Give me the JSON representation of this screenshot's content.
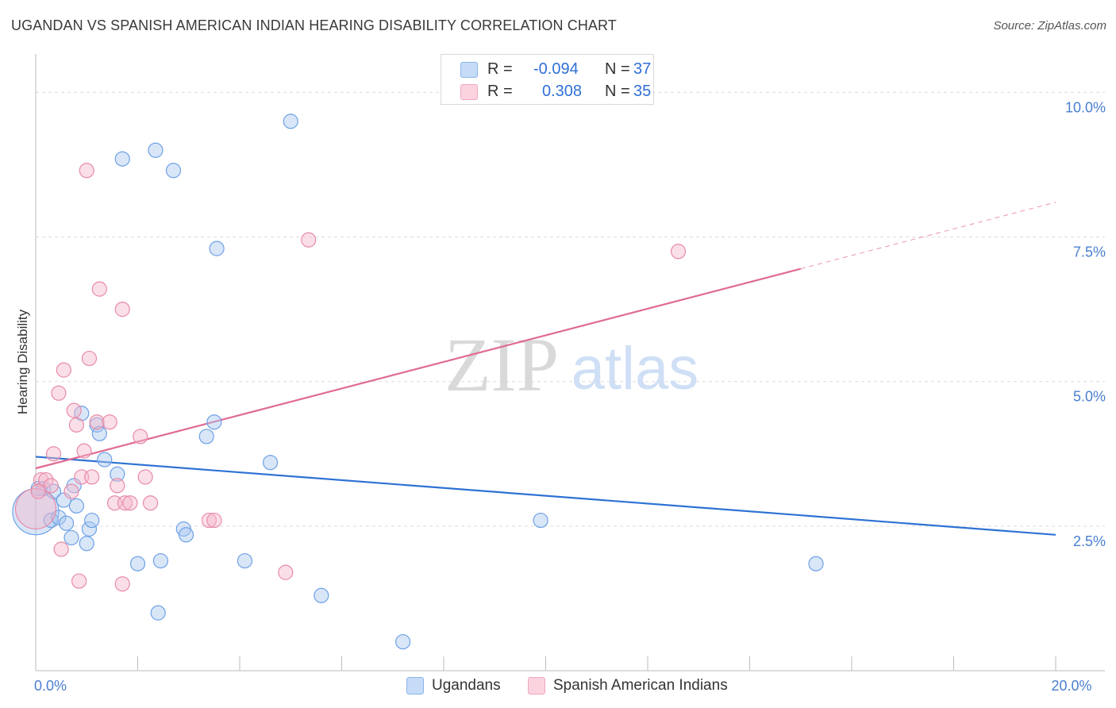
{
  "header": {
    "title": "UGANDAN VS SPANISH AMERICAN INDIAN HEARING DISABILITY CORRELATION CHART",
    "source": "Source: ZipAtlas.com"
  },
  "watermark": {
    "zip": "ZIP",
    "atlas": "atlas"
  },
  "legend": {
    "rows": [
      {
        "r_label": "R =",
        "r_value": "-0.094",
        "n_label": "N =",
        "n_value": "37",
        "color": "#a9c8f0"
      },
      {
        "r_label": "R =",
        "r_value": "0.308",
        "n_label": "N =",
        "n_value": "35",
        "color": "#f5b8cb"
      }
    ]
  },
  "bottom_legend": {
    "items": [
      {
        "label": "Ugandans",
        "color": "#a9c8f0"
      },
      {
        "label": "Spanish American Indians",
        "color": "#f5b8cb"
      }
    ]
  },
  "chart_data": {
    "type": "scatter",
    "title": "UGANDAN VS SPANISH AMERICAN INDIAN HEARING DISABILITY CORRELATION CHART",
    "ylabel": "Hearing Disability",
    "xlabel": "",
    "xlim": [
      0,
      20
    ],
    "ylim": [
      0,
      10.5
    ],
    "x_tick_labels": [
      {
        "value": 0,
        "label": "0.0%"
      },
      {
        "value": 20,
        "label": "20.0%"
      }
    ],
    "y_tick_labels": [
      {
        "value": 2.5,
        "label": "2.5%"
      },
      {
        "value": 5.0,
        "label": "5.0%"
      },
      {
        "value": 7.5,
        "label": "7.5%"
      },
      {
        "value": 10.0,
        "label": "10.0%"
      }
    ],
    "grid": true,
    "legend_position": "top-center",
    "series": [
      {
        "name": "Ugandans",
        "color": "#6ea1e6",
        "fill": "#a9c8f0",
        "trend": {
          "x": [
            0,
            20
          ],
          "y": [
            3.7,
            2.35
          ],
          "style": "solid",
          "color": "#2f72d4"
        },
        "points": [
          [
            0.0,
            2.75,
            32
          ],
          [
            0.15,
            3.15,
            13
          ],
          [
            0.3,
            2.6,
            12
          ],
          [
            0.35,
            3.1,
            10
          ],
          [
            0.45,
            2.65,
            10
          ],
          [
            0.55,
            2.95,
            10
          ],
          [
            0.6,
            2.55,
            10
          ],
          [
            0.7,
            2.3,
            10
          ],
          [
            0.75,
            3.2,
            10
          ],
          [
            0.8,
            2.85,
            10
          ],
          [
            0.9,
            4.45,
            10
          ],
          [
            1.0,
            2.2,
            10
          ],
          [
            1.05,
            2.45,
            10
          ],
          [
            1.1,
            2.6,
            10
          ],
          [
            1.2,
            4.25,
            10
          ],
          [
            1.25,
            4.1,
            10
          ],
          [
            1.35,
            3.65,
            10
          ],
          [
            1.6,
            3.4,
            10
          ],
          [
            1.7,
            8.85,
            10
          ],
          [
            2.0,
            1.85,
            10
          ],
          [
            2.35,
            9.0,
            10
          ],
          [
            2.4,
            1.0,
            10
          ],
          [
            2.45,
            1.9,
            10
          ],
          [
            2.7,
            8.65,
            10
          ],
          [
            2.9,
            2.45,
            10
          ],
          [
            2.95,
            2.35,
            10
          ],
          [
            3.35,
            4.05,
            10
          ],
          [
            3.5,
            4.3,
            10
          ],
          [
            3.55,
            7.3,
            10
          ],
          [
            4.1,
            1.9,
            10
          ],
          [
            4.6,
            3.6,
            10
          ],
          [
            5.0,
            9.5,
            10
          ],
          [
            5.6,
            1.3,
            10
          ],
          [
            7.2,
            0.5,
            10
          ],
          [
            9.9,
            2.6,
            10
          ],
          [
            15.3,
            1.85,
            10
          ],
          [
            0.05,
            3.15,
            10
          ]
        ]
      },
      {
        "name": "Spanish American Indians",
        "color": "#e98aa8",
        "fill": "#f5b8cb",
        "trend": {
          "x": [
            0,
            15
          ],
          "y": [
            3.5,
            6.95
          ],
          "style": "solid",
          "color": "#e06a93",
          "ext": {
            "x": [
              15,
              20
            ],
            "y": [
              6.95,
              8.1
            ]
          }
        },
        "points": [
          [
            0.0,
            2.8,
            28
          ],
          [
            0.1,
            3.3,
            10
          ],
          [
            0.2,
            3.3,
            10
          ],
          [
            0.3,
            3.2,
            10
          ],
          [
            0.35,
            3.75,
            10
          ],
          [
            0.45,
            4.8,
            10
          ],
          [
            0.5,
            2.1,
            10
          ],
          [
            0.55,
            5.2,
            10
          ],
          [
            0.7,
            3.1,
            10
          ],
          [
            0.75,
            4.5,
            10
          ],
          [
            0.8,
            4.25,
            10
          ],
          [
            0.85,
            1.55,
            10
          ],
          [
            0.9,
            3.35,
            10
          ],
          [
            0.95,
            3.8,
            10
          ],
          [
            1.0,
            8.65,
            10
          ],
          [
            1.05,
            5.4,
            10
          ],
          [
            1.1,
            3.35,
            10
          ],
          [
            1.2,
            4.3,
            10
          ],
          [
            1.25,
            6.6,
            10
          ],
          [
            1.45,
            4.3,
            10
          ],
          [
            1.55,
            2.9,
            10
          ],
          [
            1.6,
            3.2,
            10
          ],
          [
            1.7,
            6.25,
            10
          ],
          [
            1.7,
            1.5,
            10
          ],
          [
            1.75,
            2.9,
            10
          ],
          [
            1.85,
            2.9,
            10
          ],
          [
            2.05,
            4.05,
            10
          ],
          [
            2.15,
            3.35,
            10
          ],
          [
            2.25,
            2.9,
            10
          ],
          [
            3.4,
            2.6,
            10
          ],
          [
            3.5,
            2.6,
            10
          ],
          [
            4.9,
            1.7,
            10
          ],
          [
            5.35,
            7.45,
            10
          ],
          [
            12.6,
            7.25,
            10
          ],
          [
            0.05,
            3.1,
            10
          ]
        ]
      }
    ]
  }
}
